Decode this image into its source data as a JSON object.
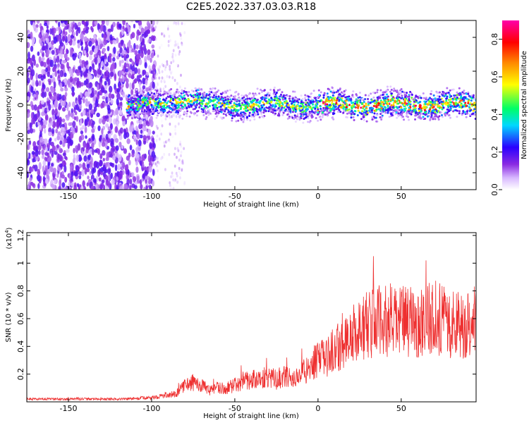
{
  "figure_title": "C2E5.2022.337.03.03.R18",
  "colors": {
    "snr_line": "#ee3030",
    "background": "#ffffff",
    "axis": "#000000"
  },
  "chart_data": [
    {
      "type": "heatmap",
      "xlabel": "Height of straight line (km)",
      "ylabel": "Frequency (Hz)",
      "xlim": [
        -175,
        95
      ],
      "ylim": [
        -50,
        50
      ],
      "x_ticks": [
        -150,
        -100,
        -50,
        0,
        50
      ],
      "y_ticks": [
        -40,
        -20,
        0,
        20,
        40
      ],
      "colorbar": {
        "label": "Normalized spectral amplitude",
        "range": [
          0.0,
          0.9
        ],
        "ticks": [
          0.0,
          0.2,
          0.4,
          0.6,
          0.8
        ],
        "colormap": "rainbow (white-purple-blue-cyan-green-yellow-red-magenta)"
      },
      "description_series": [
        {
          "region": "noise",
          "x_range": [
            -175,
            -98
          ],
          "freq_range": [
            -50,
            50
          ],
          "amplitude": [
            0.05,
            0.2
          ]
        },
        {
          "region": "sparse",
          "x_range": [
            -98,
            -80
          ],
          "freq_range": [
            -50,
            50
          ],
          "amplitude": [
            0.0,
            0.1
          ]
        },
        {
          "region": "signal_band",
          "x_range": [
            -115,
            95
          ],
          "center_freq": 0,
          "half_width_hz": [
            4,
            10
          ],
          "peak_amplitude": 0.9
        }
      ]
    },
    {
      "type": "line",
      "xlabel": "Height of straight line (km)",
      "ylabel": "SNR (10 * v/v)",
      "y_multiplier": "(x10",
      "y_multiplier_exp": "4",
      "xlim": [
        -175,
        95
      ],
      "ylim": [
        0,
        1.22
      ],
      "x_ticks": [
        -150,
        -100,
        -50,
        0,
        50
      ],
      "y_ticks": [
        0.2,
        0.4,
        0.6,
        0.8,
        1.0,
        1.2
      ],
      "series": [
        {
          "x": [
            -175,
            -150,
            -120,
            -100,
            -95,
            -90,
            -85,
            -80,
            -75,
            -70,
            -65,
            -60,
            -55,
            -50,
            -45,
            -40,
            -35,
            -30,
            -25,
            -20,
            -15,
            -10,
            -5,
            0,
            5,
            10,
            15,
            20,
            25,
            30,
            35,
            40,
            45,
            50,
            55,
            60,
            65,
            70,
            75,
            80,
            85,
            90,
            95
          ],
          "y": [
            0.02,
            0.02,
            0.02,
            0.03,
            0.04,
            0.05,
            0.06,
            0.12,
            0.14,
            0.12,
            0.08,
            0.1,
            0.1,
            0.12,
            0.15,
            0.16,
            0.17,
            0.18,
            0.16,
            0.18,
            0.16,
            0.2,
            0.26,
            0.3,
            0.32,
            0.38,
            0.42,
            0.48,
            0.52,
            0.56,
            0.58,
            0.58,
            0.57,
            0.58,
            0.57,
            0.58,
            0.6,
            0.62,
            0.58,
            0.56,
            0.55,
            0.58,
            0.6
          ]
        }
      ]
    }
  ]
}
